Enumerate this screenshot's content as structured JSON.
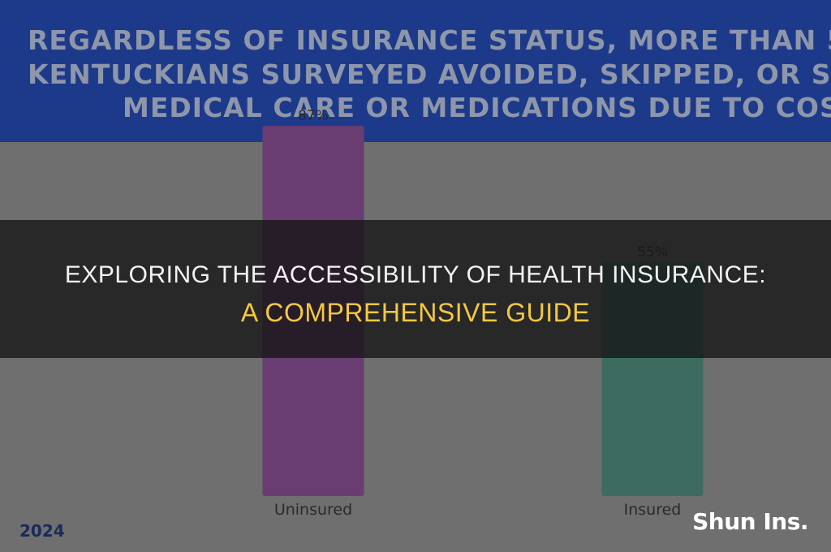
{
  "banner": {
    "line1": "REGARDLESS OF INSURANCE STATUS, MORE THAN 5",
    "line2": "KENTUCKIANS SURVEYED AVOIDED, SKIPPED, OR ST",
    "line3": "MEDICAL CARE OR MEDICATIONS DUE TO COS"
  },
  "year": "2024",
  "overlay": {
    "title_line1": "EXPLORING THE ACCESSIBILITY OF HEALTH INSURANCE:",
    "title_line2": "A COMPREHENSIVE GUIDE"
  },
  "brand": "Shun Ins.",
  "colors": {
    "banner": "#1d3a8a",
    "uninsured_bar": "#6a3d72",
    "insured_bar": "#3d6b5f",
    "accent_title": "#f4c842"
  },
  "chart_data": {
    "type": "bar",
    "categories": [
      "Uninsured",
      "Insured"
    ],
    "values": [
      87,
      55
    ],
    "value_labels": [
      "87%",
      "55%"
    ],
    "ylim": [
      0,
      100
    ],
    "title": "",
    "xlabel": "",
    "ylabel": "",
    "grid": false
  }
}
